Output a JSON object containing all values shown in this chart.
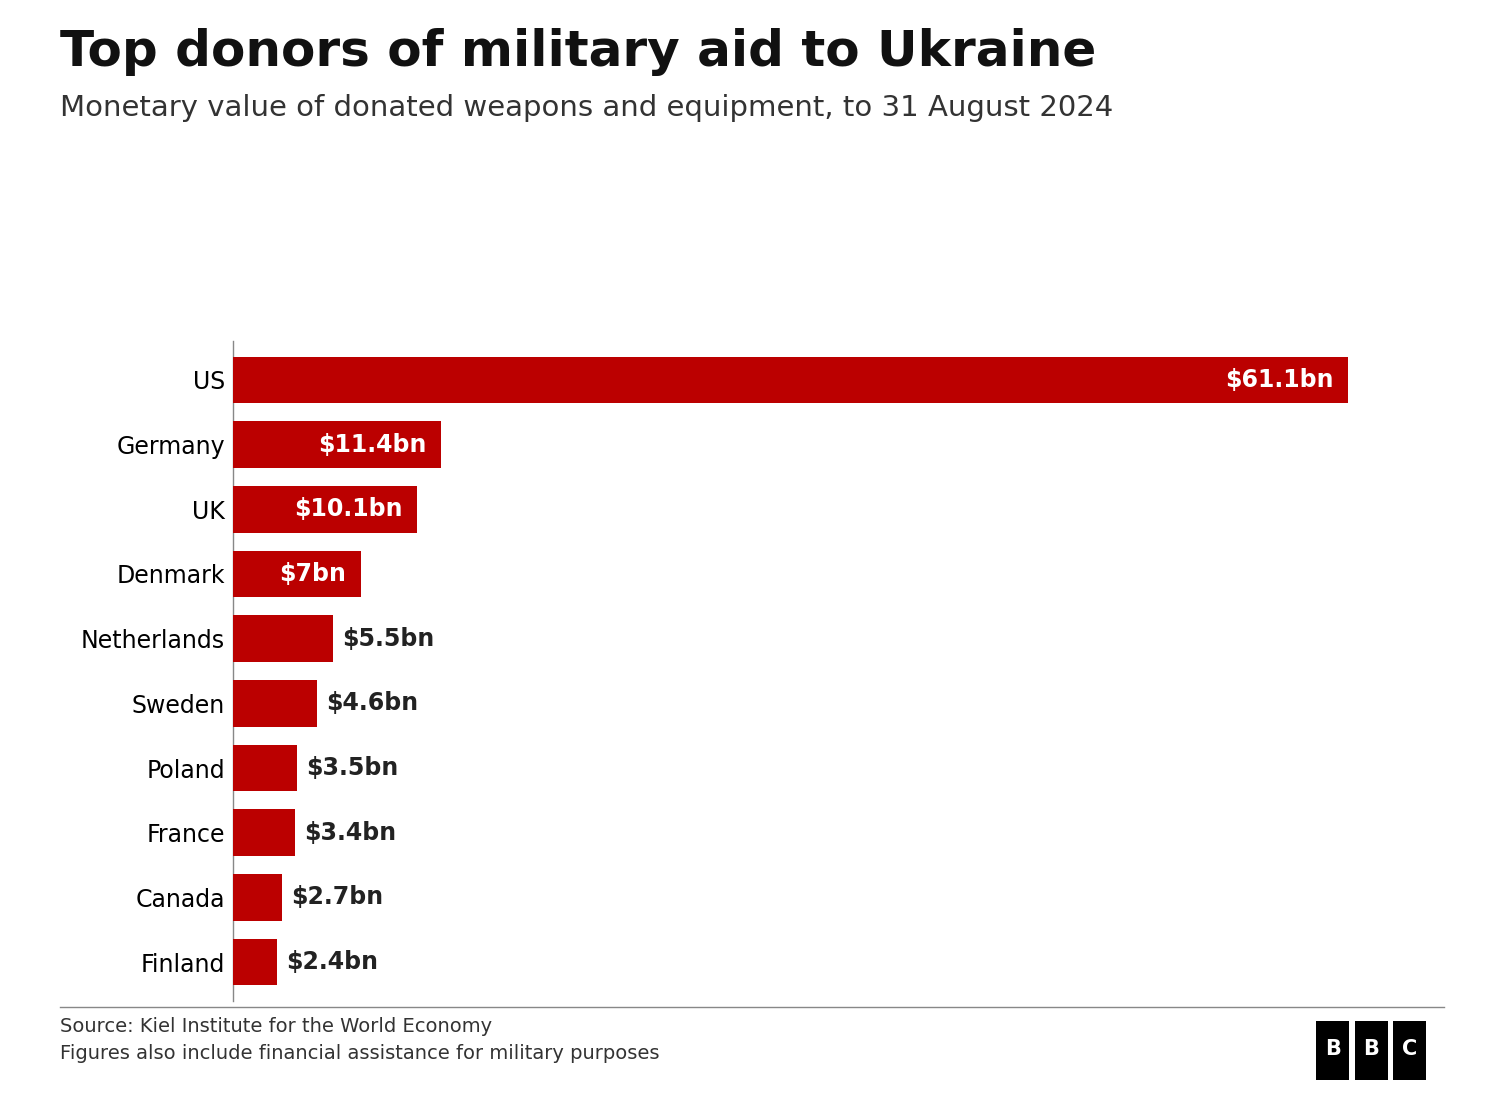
{
  "title": "Top donors of military aid to Ukraine",
  "subtitle": "Monetary value of donated weapons and equipment, to 31 August 2024",
  "source": "Source: Kiel Institute for the World Economy\nFigures also include financial assistance for military purposes",
  "countries": [
    "US",
    "Germany",
    "UK",
    "Denmark",
    "Netherlands",
    "Sweden",
    "Poland",
    "France",
    "Canada",
    "Finland"
  ],
  "values": [
    61.1,
    11.4,
    10.1,
    7.0,
    5.5,
    4.6,
    3.5,
    3.4,
    2.7,
    2.4
  ],
  "labels": [
    "$61.1bn",
    "$11.4bn",
    "$10.1bn",
    "$7bn",
    "$5.5bn",
    "$4.6bn",
    "$3.5bn",
    "$3.4bn",
    "$2.7bn",
    "$2.4bn"
  ],
  "bar_color": "#bb0000",
  "label_inside_threshold": 7.0,
  "title_fontsize": 36,
  "subtitle_fontsize": 21,
  "tick_fontsize": 17,
  "label_fontsize": 17,
  "source_fontsize": 14,
  "background_color": "#ffffff",
  "bar_height": 0.72,
  "xlim": [
    0,
    68
  ]
}
